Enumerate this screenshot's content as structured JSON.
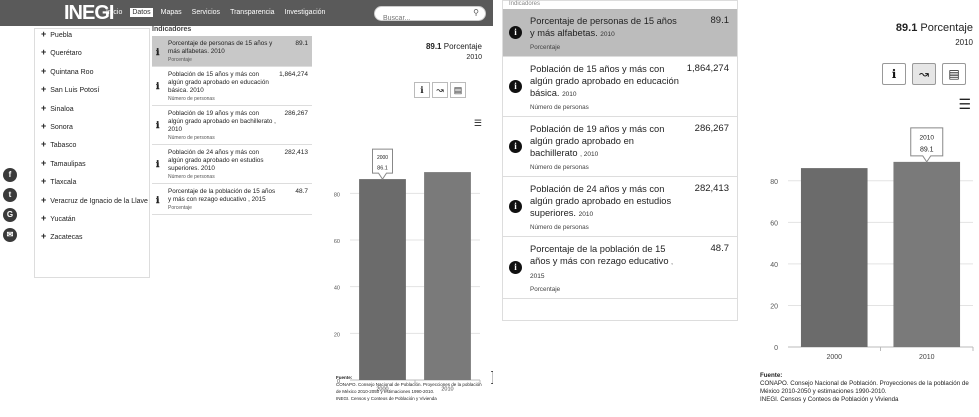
{
  "site": {
    "logo": "INEGI",
    "nav": [
      "Inicio",
      "Datos",
      "Mapas",
      "Servicios",
      "Transparencia",
      "Investigación"
    ],
    "nav_active": 1,
    "search_placeholder": "Buscar...",
    "states": [
      "Puebla",
      "Querétaro",
      "Quintana Roo",
      "San Luis Potosí",
      "Sinaloa",
      "Sonora",
      "Tabasco",
      "Tamaulipas",
      "Tlaxcala",
      "Veracruz de Ignacio de la Llave",
      "Yucatán",
      "Zacatecas"
    ],
    "social_icons": [
      "facebook-icon",
      "twitter-icon",
      "google-plus-icon",
      "email-icon"
    ],
    "indicators_header": "Indicadores"
  },
  "indicators": [
    {
      "name": "Porcentaje de personas de 15 años y más alfabetas.",
      "year": "2010",
      "unit": "Porcentaje",
      "value": "89.1",
      "selected": true
    },
    {
      "name": "Población de 15 años y más con algún grado aprobado en educación básica.",
      "year": "2010",
      "unit": "Número de personas",
      "value": "1,864,274",
      "selected": false
    },
    {
      "name": "Población de 19 años y más con algún grado aprobado en bachillerato",
      "year": ", 2010",
      "unit": "Número de personas",
      "value": "286,267",
      "selected": false
    },
    {
      "name": "Población de 24 años y más con algún grado aprobado en estudios superiores.",
      "year": "2010",
      "unit": "Número de personas",
      "value": "282,413",
      "selected": false
    },
    {
      "name": "Porcentaje de la población de 15 años y más con rezago educativo",
      "year": ", 2015",
      "unit": "Porcentaje",
      "value": "48.7",
      "selected": false
    }
  ],
  "chart_panel": {
    "value_label": "89.1",
    "unit_label": "Porcentaje",
    "year_label": "2010",
    "buttons": [
      "info-icon",
      "line-chart-icon",
      "table-icon"
    ],
    "menu_icon": "hamburger-menu-icon",
    "source_title": "Fuente:",
    "source_lines": [
      "CONAPO. Consejo Nacional de Población. Proyecciones de la población de México 2010-2050 y estimaciones 1990-2010.",
      "INEGI. Censos y Conteos de Población y Vivienda"
    ]
  },
  "p1_tooltip": {
    "year": "2000",
    "value": "86.1"
  },
  "chart_data": {
    "type": "bar",
    "categories": [
      "2000",
      "2010"
    ],
    "values": [
      86.1,
      89.1
    ],
    "ylim": [
      0,
      90
    ],
    "yticks": [
      0,
      20,
      40,
      60,
      80
    ],
    "tooltip": {
      "year": "2010",
      "value": "89.1"
    },
    "colors": [
      "#6b6b6b",
      "#7a7a7a"
    ],
    "grid": true
  }
}
